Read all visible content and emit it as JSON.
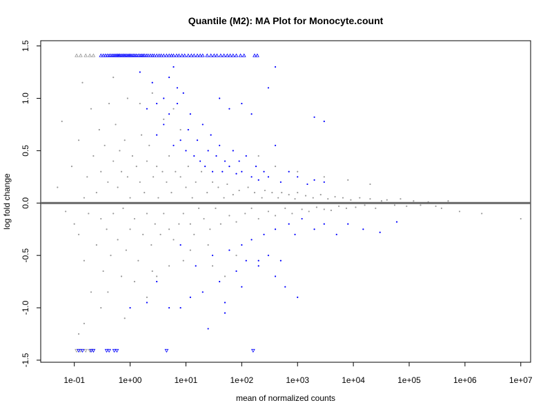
{
  "chart_data": {
    "type": "scatter",
    "title": "Quantile (M2): MA Plot for Monocyte.count",
    "xlabel": "mean of normalized counts",
    "ylabel": "log fold change",
    "x_scale": "log10",
    "xlim": [
      0.025,
      15000000
    ],
    "ylim": [
      -1.52,
      1.55
    ],
    "x_ticks": [
      {
        "value": 0.1,
        "label": "1e-01"
      },
      {
        "value": 1,
        "label": "1e+00"
      },
      {
        "value": 10,
        "label": "1e+01"
      },
      {
        "value": 100,
        "label": "1e+02"
      },
      {
        "value": 1000,
        "label": "1e+03"
      },
      {
        "value": 10000,
        "label": "1e+04"
      },
      {
        "value": 100000,
        "label": "1e+05"
      },
      {
        "value": 1000000,
        "label": "1e+06"
      },
      {
        "value": 10000000,
        "label": "1e+07"
      }
    ],
    "y_ticks": [
      {
        "value": -1.5,
        "label": "-1.5"
      },
      {
        "value": -1.0,
        "label": "-1.0"
      },
      {
        "value": -0.5,
        "label": "-0.5"
      },
      {
        "value": 0.0,
        "label": "0.0"
      },
      {
        "value": 0.5,
        "label": "0.5"
      },
      {
        "value": 1.0,
        "label": "1.0"
      },
      {
        "value": 1.5,
        "label": "1.5"
      }
    ],
    "reference_line_y": 0,
    "grid": false,
    "colors": {
      "not_significant": "#999999",
      "significant": "#0000FF",
      "reference_line": "#666666"
    },
    "series": [
      {
        "color": "#999999",
        "marker": "point",
        "points": [
          [
            0.06,
            0.78
          ],
          [
            0.05,
            0.15
          ],
          [
            0.07,
            -0.08
          ],
          [
            0.09,
            0.35
          ],
          [
            0.1,
            -0.2
          ],
          [
            0.12,
            0.6
          ],
          [
            0.12,
            -0.3
          ],
          [
            0.14,
            1.15
          ],
          [
            0.15,
            0.05
          ],
          [
            0.15,
            -0.55
          ],
          [
            0.17,
            0.25
          ],
          [
            0.18,
            -0.1
          ],
          [
            0.2,
            0.9
          ],
          [
            0.2,
            -0.85
          ],
          [
            0.22,
            0.45
          ],
          [
            0.25,
            -0.4
          ],
          [
            0.25,
            0.1
          ],
          [
            0.28,
            0.7
          ],
          [
            0.3,
            -0.15
          ],
          [
            0.3,
            0.3
          ],
          [
            0.33,
            -0.65
          ],
          [
            0.35,
            0.55
          ],
          [
            0.38,
            -0.25
          ],
          [
            0.4,
            0.2
          ],
          [
            0.42,
            0.95
          ],
          [
            0.45,
            -0.5
          ],
          [
            0.5,
            0.4
          ],
          [
            0.5,
            -0.1
          ],
          [
            0.55,
            0.75
          ],
          [
            0.6,
            -0.35
          ],
          [
            0.6,
            0.15
          ],
          [
            0.65,
            0.5
          ],
          [
            0.7,
            -0.7
          ],
          [
            0.7,
            0.3
          ],
          [
            0.75,
            -0.05
          ],
          [
            0.8,
            0.6
          ],
          [
            0.85,
            -0.45
          ],
          [
            0.9,
            0.25
          ],
          [
            1.0,
            0.05
          ],
          [
            1.0,
            -0.25
          ],
          [
            1.1,
            0.45
          ],
          [
            1.2,
            -0.15
          ],
          [
            1.3,
            0.35
          ],
          [
            1.4,
            -0.55
          ],
          [
            1.5,
            0.2
          ],
          [
            1.6,
            0.65
          ],
          [
            1.7,
            -0.3
          ],
          [
            1.8,
            0.1
          ],
          [
            2.0,
            0.4
          ],
          [
            2.0,
            -0.1
          ],
          [
            2.2,
            0.55
          ],
          [
            2.4,
            -0.4
          ],
          [
            2.6,
            0.25
          ],
          [
            2.8,
            -0.2
          ],
          [
            3.0,
            0.35
          ],
          [
            3.2,
            0.05
          ],
          [
            3.5,
            -0.3
          ],
          [
            3.8,
            0.3
          ],
          [
            4.0,
            -0.1
          ],
          [
            4.5,
            0.2
          ],
          [
            5.0,
            0.45
          ],
          [
            5.0,
            -0.25
          ],
          [
            5.5,
            0.1
          ],
          [
            6.0,
            -0.35
          ],
          [
            6.5,
            0.3
          ],
          [
            7.0,
            0.0
          ],
          [
            7.5,
            -0.2
          ],
          [
            8.0,
            0.25
          ],
          [
            9.0,
            -0.1
          ],
          [
            10.0,
            0.15
          ],
          [
            11,
            0.35
          ],
          [
            12,
            -0.2
          ],
          [
            13,
            0.05
          ],
          [
            14,
            -0.3
          ],
          [
            15,
            0.2
          ],
          [
            17,
            -0.05
          ],
          [
            19,
            0.3
          ],
          [
            21,
            -0.15
          ],
          [
            24,
            0.1
          ],
          [
            27,
            -0.25
          ],
          [
            30,
            0.2
          ],
          [
            34,
            -0.05
          ],
          [
            38,
            0.15
          ],
          [
            42,
            -0.2
          ],
          [
            48,
            0.05
          ],
          [
            55,
            0.18
          ],
          [
            60,
            -0.12
          ],
          [
            70,
            0.08
          ],
          [
            80,
            -0.18
          ],
          [
            90,
            0.12
          ],
          [
            100,
            0.0
          ],
          [
            115,
            -0.1
          ],
          [
            130,
            0.15
          ],
          [
            150,
            -0.05
          ],
          [
            170,
            0.1
          ],
          [
            200,
            -0.15
          ],
          [
            230,
            0.05
          ],
          [
            260,
            0.12
          ],
          [
            300,
            -0.08
          ],
          [
            350,
            0.1
          ],
          [
            400,
            -0.12
          ],
          [
            450,
            0.05
          ],
          [
            520,
            0.1
          ],
          [
            600,
            -0.05
          ],
          [
            700,
            0.08
          ],
          [
            800,
            -0.1
          ],
          [
            900,
            0.04
          ],
          [
            1000,
            0.1
          ],
          [
            1200,
            -0.06
          ],
          [
            1400,
            0.07
          ],
          [
            1600,
            -0.08
          ],
          [
            1900,
            0.05
          ],
          [
            2200,
            -0.04
          ],
          [
            2600,
            0.08
          ],
          [
            3000,
            -0.06
          ],
          [
            3500,
            0.04
          ],
          [
            4000,
            -0.07
          ],
          [
            4700,
            0.06
          ],
          [
            5500,
            -0.03
          ],
          [
            6500,
            0.05
          ],
          [
            7500,
            -0.05
          ],
          [
            9000,
            0.03
          ],
          [
            11000,
            -0.04
          ],
          [
            13000,
            0.05
          ],
          [
            16000,
            -0.02
          ],
          [
            20000,
            0.04
          ],
          [
            25000,
            -0.05
          ],
          [
            32000,
            0.02
          ],
          [
            40000,
            0.03
          ],
          [
            55000,
            -0.02
          ],
          [
            70000,
            0.04
          ],
          [
            90000,
            -0.03
          ],
          [
            120000,
            0.02
          ],
          [
            160000,
            -0.02
          ],
          [
            220000,
            0.01
          ],
          [
            300000,
            -0.03
          ],
          [
            380000,
            -0.05
          ],
          [
            500000,
            0.02
          ],
          [
            800000,
            -0.08
          ],
          [
            2000000,
            -0.1
          ],
          [
            10000000,
            -0.15
          ],
          [
            4,
            0.8
          ],
          [
            6,
            0.9
          ],
          [
            8,
            0.7
          ],
          [
            3,
            -0.7
          ],
          [
            5,
            -0.6
          ],
          [
            2,
            -0.9
          ],
          [
            0.8,
            -1.1
          ],
          [
            0.3,
            -1.0
          ],
          [
            0.15,
            -1.15
          ],
          [
            0.12,
            -1.25
          ],
          [
            30,
            -0.6
          ],
          [
            50,
            -0.7
          ],
          [
            80,
            -0.5
          ],
          [
            200,
            0.45
          ],
          [
            400,
            0.35
          ],
          [
            1000,
            0.3
          ],
          [
            3000,
            0.25
          ],
          [
            8000,
            0.22
          ],
          [
            20000,
            0.18
          ],
          [
            0.5,
            1.2
          ],
          [
            0.9,
            1.0
          ],
          [
            1.5,
            0.95
          ],
          [
            2.5,
            1.05
          ],
          [
            0.4,
            -0.85
          ],
          [
            1.2,
            -0.75
          ],
          [
            2.5,
            -0.65
          ],
          [
            9,
            -0.55
          ],
          [
            12,
            -0.45
          ],
          [
            25,
            -0.4
          ]
        ]
      },
      {
        "color": "#0000FF",
        "marker": "point",
        "points": [
          [
            3,
            0.65
          ],
          [
            4,
            0.75
          ],
          [
            5,
            0.85
          ],
          [
            6,
            0.55
          ],
          [
            7,
            0.95
          ],
          [
            8,
            0.6
          ],
          [
            9,
            1.05
          ],
          [
            10,
            0.5
          ],
          [
            11,
            0.7
          ],
          [
            12,
            0.85
          ],
          [
            14,
            0.45
          ],
          [
            16,
            0.6
          ],
          [
            18,
            0.4
          ],
          [
            20,
            0.75
          ],
          [
            22,
            0.35
          ],
          [
            25,
            0.5
          ],
          [
            28,
            0.65
          ],
          [
            30,
            0.3
          ],
          [
            35,
            0.45
          ],
          [
            40,
            0.55
          ],
          [
            45,
            0.3
          ],
          [
            50,
            0.4
          ],
          [
            60,
            0.35
          ],
          [
            70,
            0.5
          ],
          [
            80,
            0.28
          ],
          [
            90,
            0.4
          ],
          [
            100,
            0.3
          ],
          [
            120,
            0.45
          ],
          [
            150,
            0.25
          ],
          [
            180,
            0.35
          ],
          [
            200,
            0.22
          ],
          [
            250,
            0.3
          ],
          [
            300,
            0.25
          ],
          [
            400,
            0.55
          ],
          [
            500,
            0.2
          ],
          [
            700,
            0.3
          ],
          [
            1000,
            0.25
          ],
          [
            1500,
            0.18
          ],
          [
            2000,
            0.22
          ],
          [
            3000,
            0.2
          ],
          [
            5,
            1.2
          ],
          [
            6,
            1.3
          ],
          [
            4,
            1.0
          ],
          [
            7,
            1.1
          ],
          [
            3,
            0.95
          ],
          [
            2,
            0.9
          ],
          [
            2.5,
            1.15
          ],
          [
            1.5,
            1.25
          ],
          [
            40,
            1.0
          ],
          [
            60,
            0.9
          ],
          [
            100,
            0.95
          ],
          [
            150,
            0.85
          ],
          [
            300,
            1.1
          ],
          [
            400,
            1.3
          ],
          [
            2000,
            0.82
          ],
          [
            3000,
            0.78
          ],
          [
            8,
            -0.4
          ],
          [
            15,
            -0.6
          ],
          [
            20,
            -0.85
          ],
          [
            30,
            -0.5
          ],
          [
            40,
            -0.75
          ],
          [
            50,
            -0.95
          ],
          [
            60,
            -0.45
          ],
          [
            80,
            -0.65
          ],
          [
            100,
            -0.4
          ],
          [
            120,
            -0.55
          ],
          [
            150,
            -0.35
          ],
          [
            200,
            -0.6
          ],
          [
            250,
            -0.3
          ],
          [
            300,
            -0.5
          ],
          [
            400,
            -0.25
          ],
          [
            500,
            -0.55
          ],
          [
            700,
            -0.2
          ],
          [
            900,
            -0.3
          ],
          [
            1200,
            -0.15
          ],
          [
            2000,
            -0.25
          ],
          [
            3000,
            -0.2
          ],
          [
            5000,
            -0.3
          ],
          [
            8000,
            -0.2
          ],
          [
            15000,
            -0.25
          ],
          [
            30000,
            -0.28
          ],
          [
            60000,
            -0.18
          ],
          [
            8,
            -1.0
          ],
          [
            12,
            -0.9
          ],
          [
            25,
            -1.2
          ],
          [
            50,
            -1.05
          ],
          [
            100,
            -0.8
          ],
          [
            200,
            -0.55
          ],
          [
            400,
            -0.7
          ],
          [
            600,
            -0.8
          ],
          [
            1000,
            -0.9
          ],
          [
            5,
            -1.0
          ],
          [
            3,
            -0.75
          ],
          [
            2,
            -0.95
          ],
          [
            1,
            -1.0
          ]
        ]
      }
    ],
    "capped_points": [
      {
        "y": 1.41,
        "direction": "up",
        "color": "#999999",
        "x": [
          0.11,
          0.13,
          0.16,
          0.19,
          0.22
        ]
      },
      {
        "y": 1.41,
        "direction": "up",
        "color": "#0000FF",
        "x": [
          0.3,
          0.33,
          0.36,
          0.39,
          0.42,
          0.45,
          0.48,
          0.51,
          0.54,
          0.57,
          0.6,
          0.63,
          0.66,
          0.7,
          0.74,
          0.78,
          0.82,
          0.87,
          0.92,
          0.97,
          1.02,
          1.08,
          1.15,
          1.22,
          1.3,
          1.4,
          1.5,
          1.6,
          1.7,
          1.8,
          1.95,
          2.1,
          2.3,
          2.5,
          2.7,
          3.0,
          3.3,
          3.6,
          4.0,
          4.5,
          5.0,
          5.5,
          6.0,
          6.8,
          7.5,
          8.5,
          9.5,
          11,
          12.5,
          14,
          16,
          18,
          20,
          24,
          28,
          32,
          36,
          42,
          48,
          55,
          62,
          70,
          80,
          95,
          110,
          170,
          190
        ]
      },
      {
        "y": -1.41,
        "direction": "down",
        "color": "#999999",
        "x": [
          0.11,
          0.13,
          0.16,
          0.19,
          0.22
        ]
      },
      {
        "y": -1.41,
        "direction": "down",
        "color": "#0000FF",
        "x": [
          0.12,
          0.14,
          0.2,
          0.22,
          0.38,
          0.42,
          0.52,
          0.58,
          4.5,
          160
        ]
      }
    ]
  }
}
